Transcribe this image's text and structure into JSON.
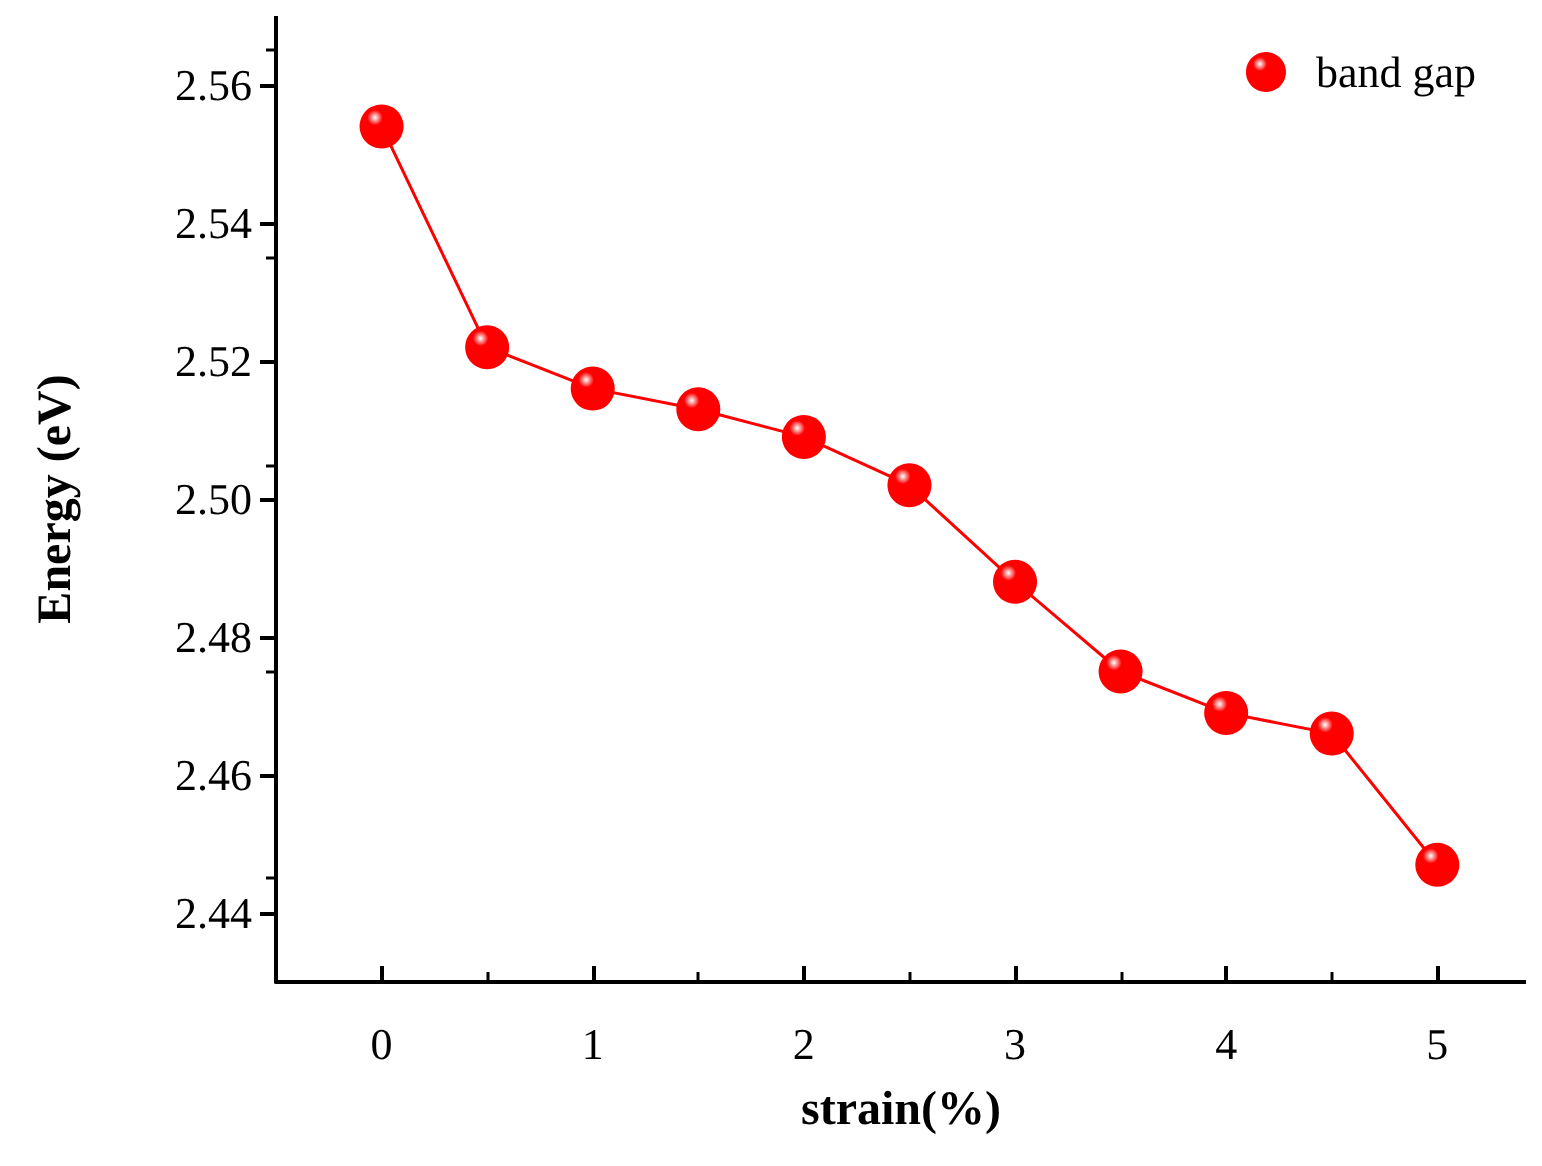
{
  "chart_data": {
    "type": "line",
    "xlabel": "strain(%)",
    "ylabel": "Energy (eV)",
    "x": [
      0,
      0.5,
      1,
      1.5,
      2,
      2.5,
      3,
      3.5,
      4,
      4.5,
      5
    ],
    "series": [
      {
        "name": "band gap",
        "color": "#ff0000",
        "values": [
          2.554,
          2.522,
          2.516,
          2.513,
          2.509,
          2.502,
          2.488,
          2.475,
          2.469,
          2.466,
          2.447
        ]
      }
    ],
    "xlim": [
      -0.5,
      5.42
    ],
    "xticks": [
      0,
      1,
      2,
      3,
      4,
      5
    ],
    "ylim": [
      2.43,
      2.57
    ],
    "yticks": [
      2.44,
      2.46,
      2.48,
      {
        "value": 2.5,
        "label": "2.50"
      },
      2.52,
      2.54,
      2.56
    ],
    "grid": false,
    "legend": "top right",
    "marker": "circle",
    "line_style": "solid"
  }
}
